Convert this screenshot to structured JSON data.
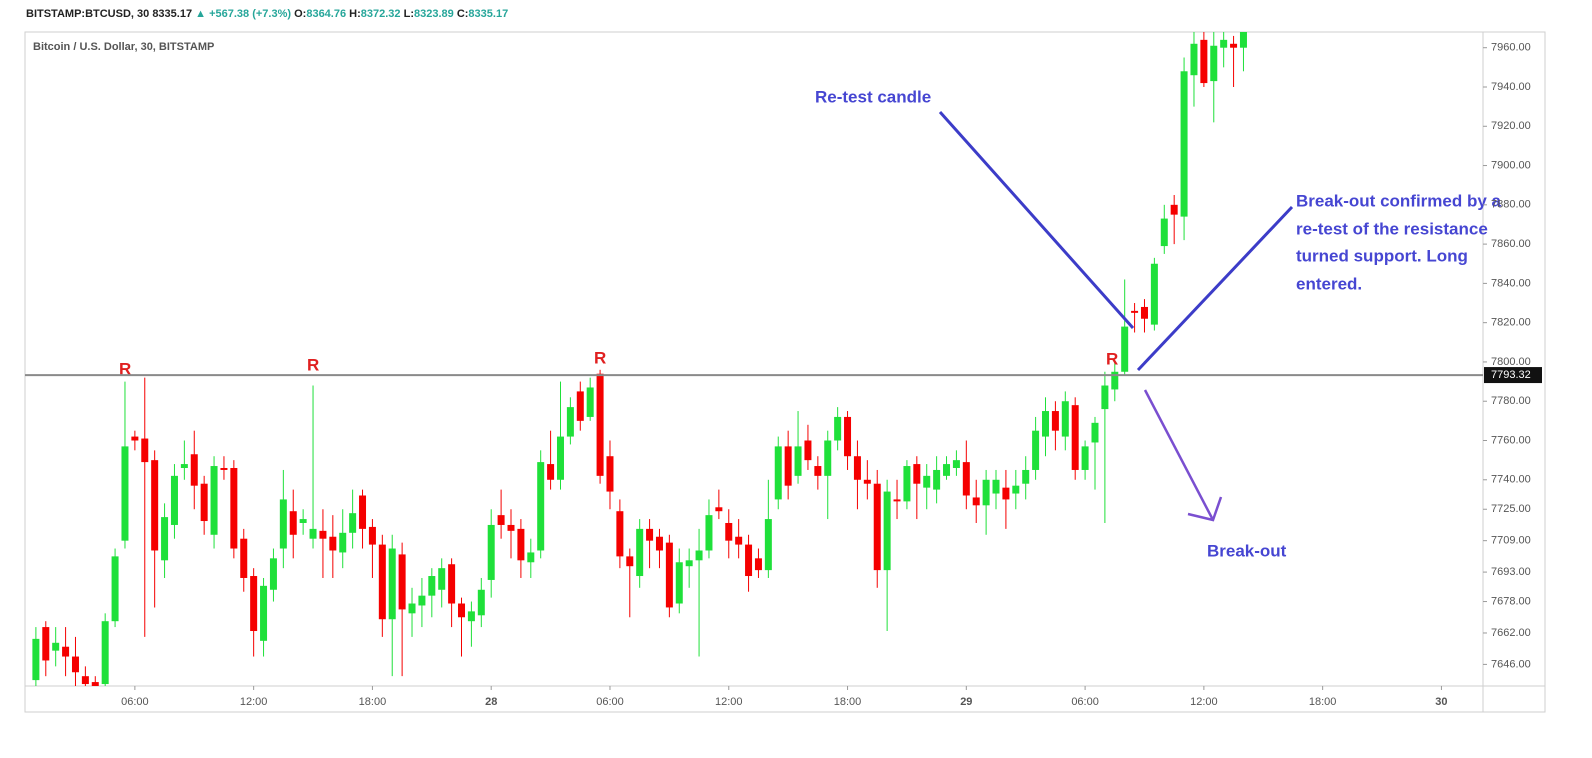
{
  "chart_data": {
    "type": "candlestick",
    "header": {
      "symbol": "BITSTAMP:BTCUSD, 30",
      "last": "8335.17",
      "change": "▲ +567.38 (+7.3%)",
      "o_label": "O:",
      "o": "8364.76",
      "h_label": "H:",
      "h": "8372.32",
      "l_label": "L:",
      "l": "8323.89",
      "c_label": "C:",
      "c": "8335.17"
    },
    "title": "Bitcoin / U.S. Dollar, 30, BITSTAMP",
    "up_color": "#1fe03a",
    "down_color": "#f50000",
    "open": [
      7638,
      7665,
      7653,
      7655,
      7650,
      7640,
      7637,
      7636,
      7668,
      7709,
      7762,
      7761,
      7750,
      7699,
      7717,
      7746,
      7753,
      7738,
      7712,
      7746,
      7746,
      7710,
      7691,
      7658,
      7684,
      7705,
      7724,
      7718,
      7710,
      7714,
      7711,
      7703,
      7713,
      7732,
      7716,
      7707,
      7669,
      7702,
      7672,
      7676,
      7681,
      7684,
      7697,
      7677,
      7668,
      7671,
      7689,
      7722,
      7717,
      7715,
      7698,
      7704,
      7748,
      7740,
      7762,
      7785,
      7772,
      7794,
      7752,
      7724,
      7701,
      7691,
      7715,
      7711,
      7708,
      7677,
      7696,
      7699,
      7704,
      7726,
      7718,
      7711,
      7707,
      7700,
      7694,
      7730,
      7757,
      7742,
      7760,
      7747,
      7742,
      7760,
      7772,
      7752,
      7740,
      7738,
      7694,
      7730,
      7729,
      7748,
      7736,
      7735,
      7742,
      7746,
      7749,
      7731,
      7727,
      7733,
      7736,
      7733,
      7738,
      7745,
      7762,
      7775,
      7762,
      7778,
      7745,
      7759,
      7776,
      7786,
      7795,
      7826,
      7828,
      7819,
      7859,
      7880,
      7874,
      7946,
      7964,
      7943,
      7960,
      7962,
      7960
    ],
    "high": [
      7665,
      7668,
      7665,
      7665,
      7660,
      7645,
      7640,
      7672,
      7705,
      7790,
      7765,
      7792,
      7755,
      7728,
      7748,
      7760,
      7765,
      7742,
      7752,
      7752,
      7750,
      7715,
      7695,
      7690,
      7705,
      7745,
      7735,
      7725,
      7788,
      7725,
      7722,
      7725,
      7735,
      7735,
      7720,
      7712,
      7712,
      7708,
      7685,
      7690,
      7695,
      7700,
      7700,
      7680,
      7678,
      7690,
      7725,
      7735,
      7725,
      7720,
      7710,
      7755,
      7765,
      7790,
      7782,
      7790,
      7792,
      7796,
      7760,
      7730,
      7705,
      7720,
      7720,
      7715,
      7712,
      7705,
      7705,
      7715,
      7730,
      7735,
      7725,
      7720,
      7712,
      7705,
      7740,
      7762,
      7765,
      7775,
      7768,
      7752,
      7765,
      7777,
      7775,
      7760,
      7750,
      7745,
      7740,
      7740,
      7750,
      7752,
      7748,
      7752,
      7752,
      7755,
      7760,
      7740,
      7745,
      7745,
      7745,
      7745,
      7752,
      7772,
      7782,
      7780,
      7785,
      7782,
      7760,
      7772,
      7795,
      7800,
      7842,
      7830,
      7832,
      7853,
      7880,
      7885,
      7955,
      7968,
      7968,
      7968,
      7968,
      7966,
      7968
    ],
    "low": [
      7635,
      7640,
      7645,
      7640,
      7635,
      7635,
      7635,
      7635,
      7665,
      7705,
      7755,
      7660,
      7675,
      7690,
      7710,
      7740,
      7725,
      7712,
      7705,
      7740,
      7700,
      7683,
      7650,
      7650,
      7678,
      7695,
      7700,
      7712,
      7705,
      7690,
      7690,
      7695,
      7705,
      7705,
      7690,
      7660,
      7640,
      7640,
      7660,
      7665,
      7670,
      7675,
      7665,
      7650,
      7655,
      7665,
      7680,
      7710,
      7700,
      7690,
      7690,
      7700,
      7735,
      7735,
      7758,
      7765,
      7770,
      7738,
      7725,
      7695,
      7670,
      7685,
      7695,
      7695,
      7670,
      7672,
      7685,
      7650,
      7700,
      7720,
      7700,
      7700,
      7683,
      7690,
      7690,
      7725,
      7730,
      7738,
      7745,
      7735,
      7720,
      7755,
      7745,
      7725,
      7730,
      7685,
      7663,
      7720,
      7725,
      7720,
      7725,
      7728,
      7740,
      7742,
      7725,
      7718,
      7712,
      7725,
      7715,
      7725,
      7730,
      7740,
      7752,
      7755,
      7755,
      7740,
      7740,
      7735,
      7718,
      7780,
      7793,
      7815,
      7815,
      7816,
      7855,
      7860,
      7862,
      7930,
      7940,
      7922,
      7950,
      7940,
      7948
    ],
    "close": [
      7659,
      7648,
      7657,
      7650,
      7642,
      7636,
      7635,
      7668,
      7701,
      7757,
      7760,
      7749,
      7704,
      7721,
      7742,
      7748,
      7737,
      7719,
      7747,
      7745,
      7705,
      7690,
      7663,
      7686,
      7700,
      7730,
      7712,
      7720,
      7715,
      7710,
      7704,
      7713,
      7723,
      7715,
      7707,
      7669,
      7705,
      7674,
      7677,
      7681,
      7691,
      7695,
      7677,
      7670,
      7673,
      7684,
      7717,
      7717,
      7714,
      7699,
      7703,
      7749,
      7740,
      7762,
      7777,
      7770,
      7787,
      7742,
      7734,
      7701,
      7696,
      7715,
      7709,
      7704,
      7675,
      7698,
      7699,
      7704,
      7722,
      7724,
      7709,
      7707,
      7691,
      7694,
      7720,
      7757,
      7737,
      7757,
      7750,
      7742,
      7760,
      7772,
      7752,
      7740,
      7738,
      7694,
      7734,
      7729,
      7747,
      7738,
      7742,
      7745,
      7748,
      7750,
      7732,
      7727,
      7740,
      7740,
      7730,
      7737,
      7745,
      7765,
      7775,
      7765,
      7780,
      7745,
      7757,
      7769,
      7788,
      7795,
      7818,
      7825,
      7822,
      7850,
      7873,
      7875,
      7948,
      7962,
      7942,
      7961,
      7964,
      7960,
      7968
    ],
    "xlim": [
      -1.1,
      146.2
    ],
    "xticks": [
      {
        "value": 10,
        "label": "06:00"
      },
      {
        "value": 22,
        "label": "12:00"
      },
      {
        "value": 34,
        "label": "18:00"
      },
      {
        "value": 46,
        "label": "28"
      },
      {
        "value": 58,
        "label": "06:00"
      },
      {
        "value": 70,
        "label": "12:00"
      },
      {
        "value": 82,
        "label": "18:00"
      },
      {
        "value": 94,
        "label": "29"
      },
      {
        "value": 106,
        "label": "06:00"
      },
      {
        "value": 118,
        "label": "12:00"
      },
      {
        "value": 130,
        "label": "18:00"
      },
      {
        "value": 142,
        "label": "30"
      }
    ],
    "ylim": [
      7635,
      7968
    ],
    "yticks": [
      {
        "value": 7646,
        "label": "7646.00"
      },
      {
        "value": 7662,
        "label": "7662.00"
      },
      {
        "value": 7678,
        "label": "7678.00"
      },
      {
        "value": 7693,
        "label": "7693.00"
      },
      {
        "value": 7709,
        "label": "7709.00"
      },
      {
        "value": 7725,
        "label": "7725.00"
      },
      {
        "value": 7740,
        "label": "7740.00"
      },
      {
        "value": 7760,
        "label": "7760.00"
      },
      {
        "value": 7780,
        "label": "7780.00"
      },
      {
        "value": 7800,
        "label": "7800.00"
      },
      {
        "value": 7820,
        "label": "7820.00"
      },
      {
        "value": 7840,
        "label": "7840.00"
      },
      {
        "value": 7860,
        "label": "7860.00"
      },
      {
        "value": 7880,
        "label": "7880.00"
      },
      {
        "value": 7900,
        "label": "7900.00"
      },
      {
        "value": 7920,
        "label": "7920.00"
      },
      {
        "value": 7940,
        "label": "7940.00"
      },
      {
        "value": 7960,
        "label": "7960.00"
      }
    ],
    "level": 7793.32,
    "annotations": {
      "r_labels": [
        "R",
        "R",
        "R",
        "R"
      ],
      "retest": "Re-test candle",
      "confirmed": [
        "Break-out confirmed by a",
        "re-test of the resistance",
        "turned support. Long",
        "entered."
      ],
      "breakout": "Break-out"
    }
  }
}
